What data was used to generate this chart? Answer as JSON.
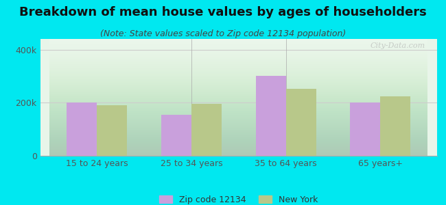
{
  "title": "Breakdown of mean house values by ages of householders",
  "subtitle": "(Note: State values scaled to Zip code 12134 population)",
  "categories": [
    "15 to 24 years",
    "25 to 34 years",
    "35 to 64 years",
    "65 years+"
  ],
  "zip_values": [
    200000,
    155000,
    300000,
    200000
  ],
  "ny_values": [
    190000,
    195000,
    252000,
    225000
  ],
  "zip_color": "#c9a0dc",
  "ny_color": "#b8c88a",
  "background_outer": "#00e8f0",
  "ylim": [
    0,
    440000
  ],
  "ytick_labels": [
    "0",
    "200k",
    "400k"
  ],
  "ytick_values": [
    0,
    200000,
    400000
  ],
  "legend_zip": "Zip code 12134",
  "legend_ny": "New York",
  "bar_width": 0.32,
  "title_fontsize": 13,
  "subtitle_fontsize": 9,
  "watermark": "City-Data.com"
}
